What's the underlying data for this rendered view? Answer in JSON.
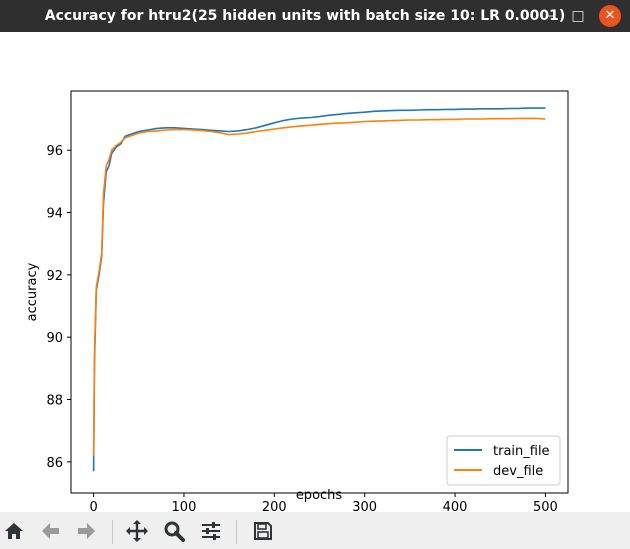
{
  "window": {
    "title": "Accuracy for htru2(25 hidden units with batch size 10: LR 0.0001)",
    "minimize_glyph": "‒",
    "maximize_glyph": "□",
    "close_glyph": "✕"
  },
  "toolbar": {
    "items": [
      "home-icon",
      "back-arrow-icon",
      "forward-arrow-icon",
      "pan-move-icon",
      "zoom-magnifier-icon",
      "configure-subplots-icon",
      "save-floppy-icon"
    ]
  },
  "colors": {
    "train": "#1f77b4",
    "dev": "#ff7f0e",
    "titlebar": "#2f2f2f",
    "close": "#e95420"
  },
  "chart_data": {
    "type": "line",
    "title": "",
    "xlabel": "epochs",
    "ylabel": "accuracy",
    "xlim": [
      -25,
      525
    ],
    "ylim": [
      85.0,
      97.9
    ],
    "xticks": [
      0,
      100,
      200,
      300,
      400,
      500
    ],
    "yticks": [
      86,
      88,
      90,
      92,
      94,
      96
    ],
    "grid": false,
    "legend_position": "lower right",
    "series": [
      {
        "name": "train_file",
        "color": "#1f77b4",
        "points": [
          [
            0,
            85.7
          ],
          [
            1,
            89.2
          ],
          [
            3,
            91.5
          ],
          [
            6,
            92.0
          ],
          [
            9,
            92.6
          ],
          [
            11,
            94.3
          ],
          [
            14,
            95.3
          ],
          [
            17,
            95.5
          ],
          [
            20,
            95.9
          ],
          [
            25,
            96.1
          ],
          [
            30,
            96.2
          ],
          [
            35,
            96.45
          ],
          [
            40,
            96.5
          ],
          [
            50,
            96.6
          ],
          [
            60,
            96.65
          ],
          [
            70,
            96.7
          ],
          [
            80,
            96.72
          ],
          [
            90,
            96.72
          ],
          [
            100,
            96.7
          ],
          [
            110,
            96.68
          ],
          [
            120,
            96.66
          ],
          [
            130,
            96.64
          ],
          [
            140,
            96.62
          ],
          [
            150,
            96.6
          ],
          [
            160,
            96.62
          ],
          [
            170,
            96.66
          ],
          [
            180,
            96.72
          ],
          [
            190,
            96.8
          ],
          [
            200,
            96.88
          ],
          [
            210,
            96.95
          ],
          [
            220,
            97.0
          ],
          [
            230,
            97.03
          ],
          [
            240,
            97.05
          ],
          [
            250,
            97.08
          ],
          [
            260,
            97.12
          ],
          [
            270,
            97.15
          ],
          [
            280,
            97.18
          ],
          [
            290,
            97.2
          ],
          [
            300,
            97.22
          ],
          [
            310,
            97.25
          ],
          [
            320,
            97.26
          ],
          [
            330,
            97.27
          ],
          [
            340,
            97.28
          ],
          [
            350,
            97.28
          ],
          [
            360,
            97.29
          ],
          [
            370,
            97.3
          ],
          [
            380,
            97.3
          ],
          [
            390,
            97.31
          ],
          [
            400,
            97.31
          ],
          [
            410,
            97.32
          ],
          [
            420,
            97.32
          ],
          [
            430,
            97.33
          ],
          [
            440,
            97.33
          ],
          [
            450,
            97.33
          ],
          [
            460,
            97.34
          ],
          [
            470,
            97.34
          ],
          [
            480,
            97.35
          ],
          [
            490,
            97.35
          ],
          [
            500,
            97.35
          ]
        ]
      },
      {
        "name": "dev_file",
        "color": "#ff7f0e",
        "points": [
          [
            0,
            86.2
          ],
          [
            1,
            89.5
          ],
          [
            3,
            91.6
          ],
          [
            6,
            92.1
          ],
          [
            9,
            92.7
          ],
          [
            11,
            94.6
          ],
          [
            14,
            95.5
          ],
          [
            17,
            95.7
          ],
          [
            20,
            96.0
          ],
          [
            25,
            96.15
          ],
          [
            30,
            96.25
          ],
          [
            35,
            96.4
          ],
          [
            40,
            96.45
          ],
          [
            50,
            96.55
          ],
          [
            60,
            96.6
          ],
          [
            70,
            96.62
          ],
          [
            80,
            96.65
          ],
          [
            90,
            96.66
          ],
          [
            100,
            96.66
          ],
          [
            110,
            96.65
          ],
          [
            120,
            96.63
          ],
          [
            130,
            96.6
          ],
          [
            140,
            96.56
          ],
          [
            150,
            96.5
          ],
          [
            160,
            96.52
          ],
          [
            170,
            96.55
          ],
          [
            180,
            96.6
          ],
          [
            190,
            96.64
          ],
          [
            200,
            96.68
          ],
          [
            210,
            96.72
          ],
          [
            220,
            96.75
          ],
          [
            230,
            96.78
          ],
          [
            240,
            96.8
          ],
          [
            250,
            96.83
          ],
          [
            260,
            96.85
          ],
          [
            270,
            96.87
          ],
          [
            280,
            96.88
          ],
          [
            290,
            96.9
          ],
          [
            300,
            96.92
          ],
          [
            310,
            96.93
          ],
          [
            320,
            96.94
          ],
          [
            330,
            96.95
          ],
          [
            340,
            96.96
          ],
          [
            350,
            96.97
          ],
          [
            360,
            96.97
          ],
          [
            370,
            96.98
          ],
          [
            380,
            96.98
          ],
          [
            390,
            96.99
          ],
          [
            400,
            96.99
          ],
          [
            410,
            97.0
          ],
          [
            420,
            97.0
          ],
          [
            430,
            97.0
          ],
          [
            440,
            97.01
          ],
          [
            450,
            97.01
          ],
          [
            460,
            97.01
          ],
          [
            470,
            97.02
          ],
          [
            480,
            97.02
          ],
          [
            490,
            97.02
          ],
          [
            500,
            97.0
          ]
        ]
      }
    ]
  }
}
